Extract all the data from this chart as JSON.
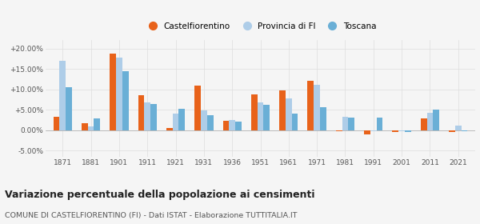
{
  "years": [
    1871,
    1881,
    1901,
    1911,
    1921,
    1931,
    1936,
    1951,
    1961,
    1971,
    1981,
    1991,
    2001,
    2011,
    2021
  ],
  "castelfiorentino": [
    3.2,
    1.7,
    18.7,
    8.5,
    0.5,
    11.0,
    2.3,
    8.8,
    9.8,
    12.0,
    -0.2,
    -1.0,
    -0.5,
    2.8,
    -0.4
  ],
  "provincia_fi": [
    17.0,
    1.0,
    17.8,
    6.8,
    4.0,
    4.8,
    2.5,
    6.8,
    7.8,
    11.2,
    3.2,
    -0.3,
    -0.3,
    4.3,
    1.2
  ],
  "toscana": [
    10.5,
    2.8,
    14.5,
    6.5,
    5.3,
    3.7,
    2.2,
    6.2,
    4.0,
    5.7,
    3.1,
    3.1,
    -0.5,
    5.0,
    -0.2
  ],
  "color_castel": "#E8621A",
  "color_prov": "#AECDE8",
  "color_tosc": "#6AAFD6",
  "title": "Variazione percentuale della popolazione ai censimenti",
  "subtitle": "COMUNE DI CASTELFIORENTINO (FI) - Dati ISTAT - Elaborazione TUTTITALIA.IT",
  "ylim": [
    -6.5,
    22.0
  ],
  "yticks": [
    -5.0,
    0.0,
    5.0,
    10.0,
    15.0,
    20.0
  ],
  "ytick_labels": [
    "-5.00%",
    "0.00%",
    "+5.00%",
    "+10.00%",
    "+15.00%",
    "+20.00%"
  ],
  "bar_width": 0.22,
  "bg_color": "#f5f5f5",
  "grid_color": "#dddddd"
}
